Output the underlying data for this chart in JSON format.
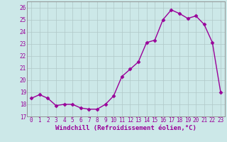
{
  "x": [
    0,
    1,
    2,
    3,
    4,
    5,
    6,
    7,
    8,
    9,
    10,
    11,
    12,
    13,
    14,
    15,
    16,
    17,
    18,
    19,
    20,
    21,
    22,
    23
  ],
  "y": [
    18.5,
    18.8,
    18.5,
    17.9,
    18.0,
    18.0,
    17.7,
    17.6,
    17.6,
    18.0,
    18.7,
    20.3,
    20.9,
    21.5,
    23.1,
    23.3,
    25.0,
    25.8,
    25.5,
    25.1,
    25.3,
    24.6,
    23.1,
    19.0
  ],
  "line_color": "#990099",
  "marker": "D",
  "markersize": 2.5,
  "linewidth": 1.0,
  "xlabel": "Windchill (Refroidissement éolien,°C)",
  "xlabel_fontsize": 6.5,
  "ylim": [
    17,
    26.5
  ],
  "xlim": [
    -0.5,
    23.5
  ],
  "yticks": [
    17,
    18,
    19,
    20,
    21,
    22,
    23,
    24,
    25,
    26
  ],
  "xticks": [
    0,
    1,
    2,
    3,
    4,
    5,
    6,
    7,
    8,
    9,
    10,
    11,
    12,
    13,
    14,
    15,
    16,
    17,
    18,
    19,
    20,
    21,
    22,
    23
  ],
  "tick_fontsize": 5.5,
  "grid_color": "#b0c8c8",
  "bg_color": "#cce8e8",
  "fig_bg_color": "#cce8e8",
  "spine_color": "#888888"
}
